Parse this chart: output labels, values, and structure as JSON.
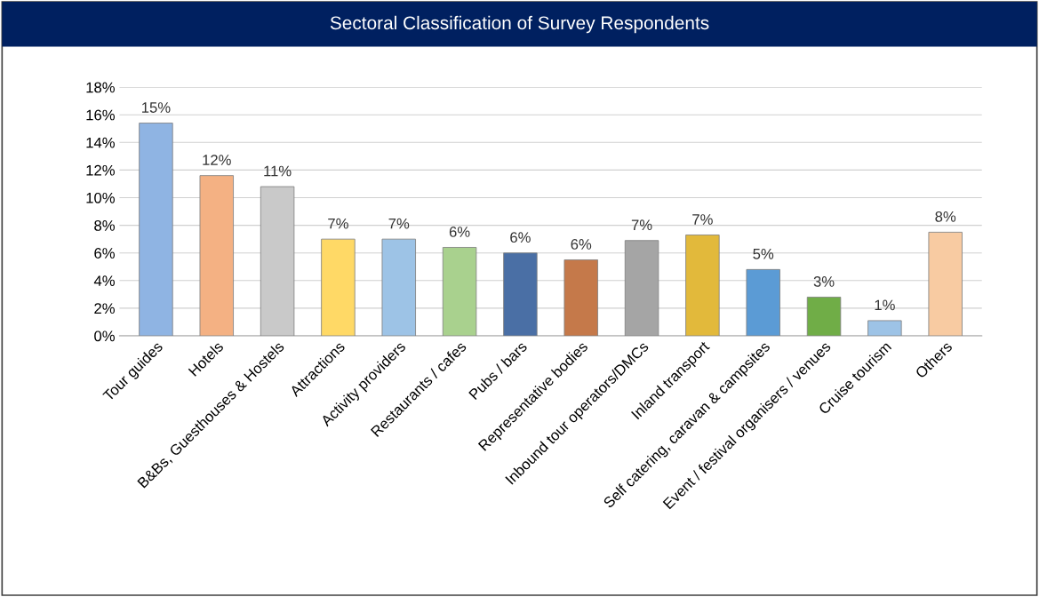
{
  "chart_data": {
    "type": "bar",
    "title": "Sectoral Classification of Survey Respondents",
    "categories": [
      "Tour guides",
      "Hotels",
      "B&Bs, Guesthouses & Hostels",
      "Attractions",
      "Activity providers",
      "Restaurants / cafes",
      "Pubs / bars",
      "Representative bodies",
      "Inbound tour operators/DMCs",
      "Inland transport",
      "Self catering, caravan & campsites",
      "Event / festival organisers / venues",
      "Cruise tourism",
      "Others"
    ],
    "values": [
      15.4,
      11.6,
      10.8,
      7.0,
      7.0,
      6.4,
      6.0,
      5.5,
      6.9,
      7.3,
      4.8,
      2.8,
      1.1,
      7.5
    ],
    "value_labels": [
      "15%",
      "12%",
      "11%",
      "7%",
      "7%",
      "6%",
      "6%",
      "6%",
      "7%",
      "7%",
      "5%",
      "3%",
      "1%",
      "8%"
    ],
    "colors": [
      "#8fb4e3",
      "#f4b183",
      "#c9c9c9",
      "#ffd966",
      "#9dc3e6",
      "#a9d18e",
      "#4a6fa5",
      "#c5794a",
      "#a5a5a5",
      "#e2b93b",
      "#5b9bd5",
      "#70ad47",
      "#9dc3e6",
      "#f8cba2"
    ],
    "ylim": [
      0,
      18
    ],
    "yticks": [
      {
        "value": 0,
        "label": "0%"
      },
      {
        "value": 2,
        "label": "2%"
      },
      {
        "value": 4,
        "label": "4%"
      },
      {
        "value": 6,
        "label": "6%"
      },
      {
        "value": 8,
        "label": "8%"
      },
      {
        "value": 10,
        "label": "10%"
      },
      {
        "value": 12,
        "label": "12%"
      },
      {
        "value": 14,
        "label": "14%"
      },
      {
        "value": 16,
        "label": "16%"
      },
      {
        "value": 18,
        "label": "18%"
      }
    ],
    "grid": "y",
    "legend": false
  }
}
